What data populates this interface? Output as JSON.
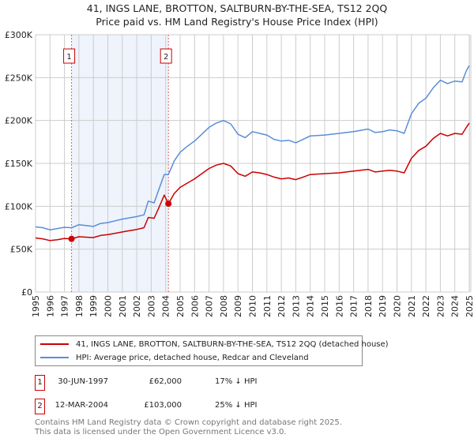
{
  "chart_data": {
    "type": "line",
    "title": "41, INGS LANE, BROTTON, SALTBURN-BY-THE-SEA, TS12 2QQ",
    "subtitle": "Price paid vs. HM Land Registry's House Price Index (HPI)",
    "xlim": [
      1995,
      2025
    ],
    "ylim": [
      0,
      300000
    ],
    "x_ticks": [
      "1995",
      "1996",
      "1997",
      "1998",
      "1999",
      "2000",
      "2001",
      "2002",
      "2003",
      "2004",
      "2005",
      "2006",
      "2007",
      "2008",
      "2009",
      "2010",
      "2011",
      "2012",
      "2013",
      "2014",
      "2015",
      "2016",
      "2017",
      "2018",
      "2019",
      "2020",
      "2021",
      "2022",
      "2023",
      "2024",
      "2025"
    ],
    "y_ticks": [
      {
        "v": 0,
        "label": "£0"
      },
      {
        "v": 50000,
        "label": "£50K"
      },
      {
        "v": 100000,
        "label": "£100K"
      },
      {
        "v": 150000,
        "label": "£150K"
      },
      {
        "v": 200000,
        "label": "£200K"
      },
      {
        "v": 250000,
        "label": "£250K"
      },
      {
        "v": 300000,
        "label": "£300K"
      }
    ],
    "grid": true,
    "series": [
      {
        "name": "41, INGS LANE, BROTTON, SALTBURN-BY-THE-SEA, TS12 2QQ (detached house)",
        "color": "#cc0000",
        "points": [
          [
            1995,
            63000
          ],
          [
            1995.5,
            62000
          ],
          [
            1996,
            60000
          ],
          [
            1996.5,
            61000
          ],
          [
            1997,
            62500
          ],
          [
            1997.5,
            62000
          ],
          [
            1998,
            64500
          ],
          [
            1998.5,
            64000
          ],
          [
            1999,
            63500
          ],
          [
            1999.5,
            66000
          ],
          [
            2000,
            67000
          ],
          [
            2000.5,
            68500
          ],
          [
            2001,
            70000
          ],
          [
            2001.5,
            71500
          ],
          [
            2002,
            73000
          ],
          [
            2002.5,
            75000
          ],
          [
            2002.8,
            87000
          ],
          [
            2003.2,
            86000
          ],
          [
            2003.5,
            97000
          ],
          [
            2003.9,
            113000
          ],
          [
            2004.19,
            103000
          ],
          [
            2004.6,
            115000
          ],
          [
            2005,
            122000
          ],
          [
            2005.5,
            127000
          ],
          [
            2006,
            132000
          ],
          [
            2006.5,
            138000
          ],
          [
            2007,
            144000
          ],
          [
            2007.5,
            148000
          ],
          [
            2008,
            150000
          ],
          [
            2008.5,
            147000
          ],
          [
            2009,
            138000
          ],
          [
            2009.5,
            135000
          ],
          [
            2010,
            140000
          ],
          [
            2010.5,
            139000
          ],
          [
            2011,
            137000
          ],
          [
            2011.5,
            134000
          ],
          [
            2012,
            132000
          ],
          [
            2012.5,
            133000
          ],
          [
            2013,
            131000
          ],
          [
            2013.5,
            134000
          ],
          [
            2014,
            137000
          ],
          [
            2015,
            138000
          ],
          [
            2016,
            139000
          ],
          [
            2017,
            141000
          ],
          [
            2018,
            143000
          ],
          [
            2018.5,
            140000
          ],
          [
            2019,
            141000
          ],
          [
            2019.5,
            142000
          ],
          [
            2020,
            141000
          ],
          [
            2020.5,
            139000
          ],
          [
            2021,
            156000
          ],
          [
            2021.5,
            165000
          ],
          [
            2022,
            170000
          ],
          [
            2022.5,
            179000
          ],
          [
            2023,
            185000
          ],
          [
            2023.5,
            182000
          ],
          [
            2024,
            185000
          ],
          [
            2024.5,
            184000
          ],
          [
            2024.8,
            192000
          ],
          [
            2025,
            197000
          ]
        ]
      },
      {
        "name": "HPI: Average price, detached house, Redcar and Cleveland",
        "color": "#5b8dd6",
        "points": [
          [
            1995,
            76000
          ],
          [
            1995.5,
            75000
          ],
          [
            1996,
            72500
          ],
          [
            1996.5,
            74000
          ],
          [
            1997,
            75500
          ],
          [
            1997.5,
            75000
          ],
          [
            1998,
            78500
          ],
          [
            1998.5,
            77500
          ],
          [
            1999,
            76500
          ],
          [
            1999.5,
            80000
          ],
          [
            2000,
            81000
          ],
          [
            2000.5,
            83000
          ],
          [
            2001,
            85000
          ],
          [
            2001.5,
            86500
          ],
          [
            2002,
            88000
          ],
          [
            2002.5,
            90000
          ],
          [
            2002.8,
            106000
          ],
          [
            2003.2,
            104000
          ],
          [
            2003.5,
            118000
          ],
          [
            2003.9,
            137000
          ],
          [
            2004.19,
            137000
          ],
          [
            2004.6,
            153000
          ],
          [
            2005,
            163000
          ],
          [
            2005.5,
            170000
          ],
          [
            2006,
            176000
          ],
          [
            2006.5,
            184000
          ],
          [
            2007,
            192000
          ],
          [
            2007.5,
            197000
          ],
          [
            2008,
            200000
          ],
          [
            2008.5,
            196000
          ],
          [
            2009,
            184000
          ],
          [
            2009.5,
            180000
          ],
          [
            2010,
            187000
          ],
          [
            2010.5,
            185000
          ],
          [
            2011,
            183000
          ],
          [
            2011.5,
            178000
          ],
          [
            2012,
            176000
          ],
          [
            2012.5,
            177000
          ],
          [
            2013,
            174000
          ],
          [
            2013.5,
            178000
          ],
          [
            2014,
            182000
          ],
          [
            2015,
            183000
          ],
          [
            2016,
            185000
          ],
          [
            2017,
            187000
          ],
          [
            2018,
            190000
          ],
          [
            2018.5,
            186000
          ],
          [
            2019,
            187000
          ],
          [
            2019.5,
            189000
          ],
          [
            2020,
            188000
          ],
          [
            2020.5,
            185000
          ],
          [
            2021,
            208000
          ],
          [
            2021.5,
            220000
          ],
          [
            2022,
            226000
          ],
          [
            2022.5,
            238000
          ],
          [
            2023,
            247000
          ],
          [
            2023.5,
            243000
          ],
          [
            2024,
            246000
          ],
          [
            2024.5,
            245000
          ],
          [
            2024.8,
            258000
          ],
          [
            2025,
            264000
          ]
        ]
      }
    ],
    "sales": [
      {
        "label": "1",
        "x": 1997.49,
        "y": 62000
      },
      {
        "label": "2",
        "x": 2004.19,
        "y": 103000
      }
    ]
  },
  "legend": {
    "red_label": "41, INGS LANE, BROTTON, SALTBURN-BY-THE-SEA, TS12 2QQ (detached house)",
    "blue_label": "HPI: Average price, detached house, Redcar and Cleveland"
  },
  "sales_table": [
    {
      "num": "1",
      "date": "30-JUN-1997",
      "price": "£62,000",
      "hpi": "17% ↓ HPI"
    },
    {
      "num": "2",
      "date": "12-MAR-2004",
      "price": "£103,000",
      "hpi": "25% ↓ HPI"
    }
  ],
  "footer": {
    "line1": "Contains HM Land Registry data © Crown copyright and database right 2025.",
    "line2": "This data is licensed under the Open Government Licence v3.0."
  }
}
